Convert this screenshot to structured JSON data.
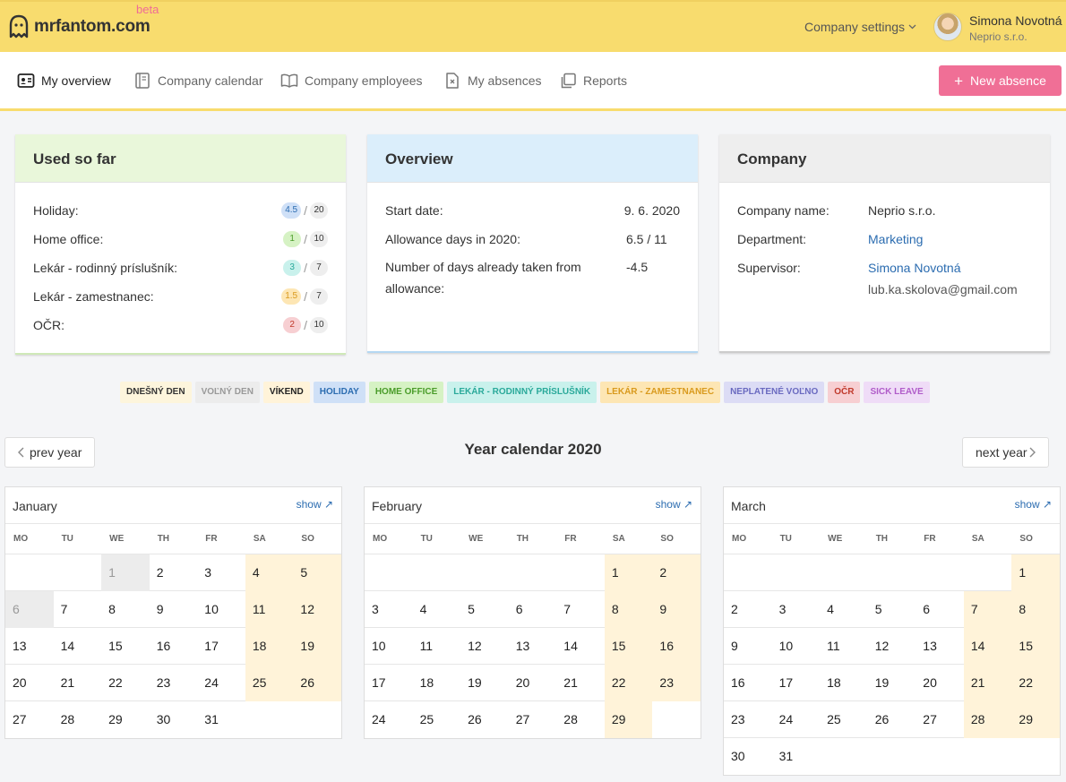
{
  "brand": {
    "name": "mrfantom.com",
    "badge": "beta",
    "brand_color": "#f8dc6e",
    "accent": "#f06f96"
  },
  "header": {
    "company_settings": "Company settings",
    "user_name": "Simona Novotná",
    "user_company": "Neprio s.r.o."
  },
  "nav": {
    "overview": "My overview",
    "calendar": "Company calendar",
    "employees": "Company employees",
    "absences": "My absences",
    "reports": "Reports",
    "new_absence": "New absence"
  },
  "used": {
    "title": "Used so far",
    "rows": [
      {
        "label": "Holiday:",
        "used": "4.5",
        "total": "20",
        "color": "#cfe0f7",
        "text": "#2b6cb0"
      },
      {
        "label": "Home office:",
        "used": "1",
        "total": "10",
        "color": "#d6f2c4",
        "text": "#4a9c2a"
      },
      {
        "label": "Lekár - rodinný príslušník:",
        "used": "3",
        "total": "7",
        "color": "#c9f1ec",
        "text": "#2aa99a"
      },
      {
        "label": "Lekár - zamestnanec:",
        "used": "1.5",
        "total": "7",
        "color": "#fde6b4",
        "text": "#d99a1e"
      },
      {
        "label": "OČR:",
        "used": "2",
        "total": "10",
        "color": "#f7cfd2",
        "text": "#c0392b"
      }
    ]
  },
  "overview": {
    "title": "Overview",
    "start_label": "Start date:",
    "start_value": "9. 6. 2020",
    "allowance_label": "Allowance days in 2020:",
    "allowance_value": "6.5 / 11",
    "taken_label": "Number of days already taken from allowance:",
    "taken_value": "-4.5"
  },
  "company": {
    "title": "Company",
    "name_label": "Company name:",
    "name_value": "Neprio s.r.o.",
    "dept_label": "Department:",
    "dept_value": "Marketing",
    "sup_label": "Supervisor:",
    "sup_value": "Simona Novotná",
    "sup_email": "lub.ka.skolova@gmail.com"
  },
  "legend": [
    {
      "label": "DNEŠNÝ DEN",
      "bg": "#fdf5dc",
      "fg": "#333"
    },
    {
      "label": "VOĽNÝ DEN",
      "bg": "#ececec",
      "fg": "#999"
    },
    {
      "label": "VÍKEND",
      "bg": "#fff3d9",
      "fg": "#222"
    },
    {
      "label": "HOLIDAY",
      "bg": "#cfe0f7",
      "fg": "#2b6cb0"
    },
    {
      "label": "HOME OFFICE",
      "bg": "#d6f2c4",
      "fg": "#4a9c2a"
    },
    {
      "label": "LEKÁR - RODINNÝ PRÍSLUŠNÍK",
      "bg": "#c9f1ec",
      "fg": "#2aa99a"
    },
    {
      "label": "LEKÁR - ZAMESTNANEC",
      "bg": "#fde6b4",
      "fg": "#d99a1e"
    },
    {
      "label": "NEPLATENÉ VOĽNO",
      "bg": "#dcdcf5",
      "fg": "#6a6ac0"
    },
    {
      "label": "OČR",
      "bg": "#f7cfd2",
      "fg": "#c0392b"
    },
    {
      "label": "SICK LEAVE",
      "bg": "#efdcf7",
      "fg": "#b05cc9"
    }
  ],
  "calendar": {
    "title": "Year calendar 2020",
    "prev": "prev year",
    "next": "next year",
    "show": "show ↗",
    "dow": [
      "MO",
      "TU",
      "WE",
      "TH",
      "FR",
      "SA",
      "SO"
    ],
    "months": [
      {
        "name": "January",
        "offset": 2,
        "days": 31,
        "off": [
          1,
          6
        ]
      },
      {
        "name": "February",
        "offset": 5,
        "days": 29,
        "off": []
      },
      {
        "name": "March",
        "offset": 6,
        "days": 31,
        "off": []
      }
    ]
  }
}
